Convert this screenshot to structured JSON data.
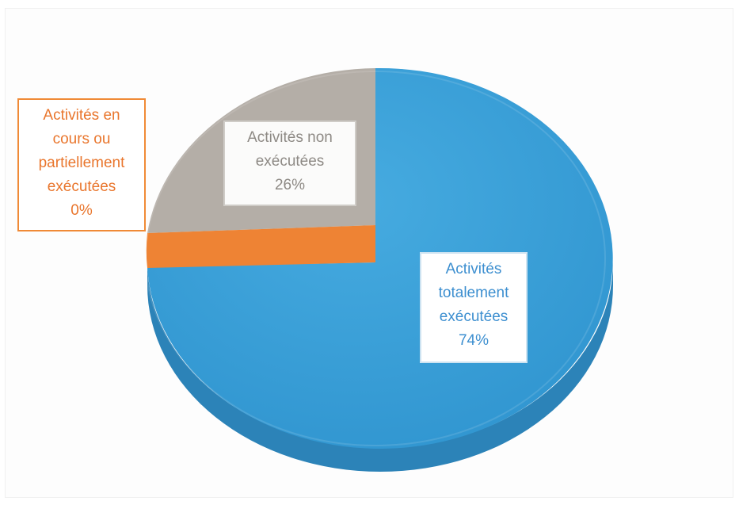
{
  "chart_data": {
    "type": "pie",
    "style": "3d",
    "title": "",
    "slices": [
      {
        "key": "total",
        "label": "Activités totalement exécutées",
        "label_lines": [
          "Activités",
          "totalement",
          "exécutées",
          "74%"
        ],
        "percent": 74,
        "color": "#3aa0d7",
        "side_color": "#2f86b9"
      },
      {
        "key": "partial",
        "label": "Activités en cours ou partiellement exécutées",
        "label_lines": [
          "Activités en",
          "cours ou",
          "partiellement",
          "exécutées",
          "0%"
        ],
        "percent": 0,
        "color": "#ee8334",
        "side_color": "#c96a26"
      },
      {
        "key": "none",
        "label": "Activités non exécutées",
        "label_lines": [
          "Activités non",
          "exécutées",
          "26%"
        ],
        "percent": 26,
        "color": "#b4aea7",
        "side_color": "#8f8a84"
      }
    ]
  }
}
